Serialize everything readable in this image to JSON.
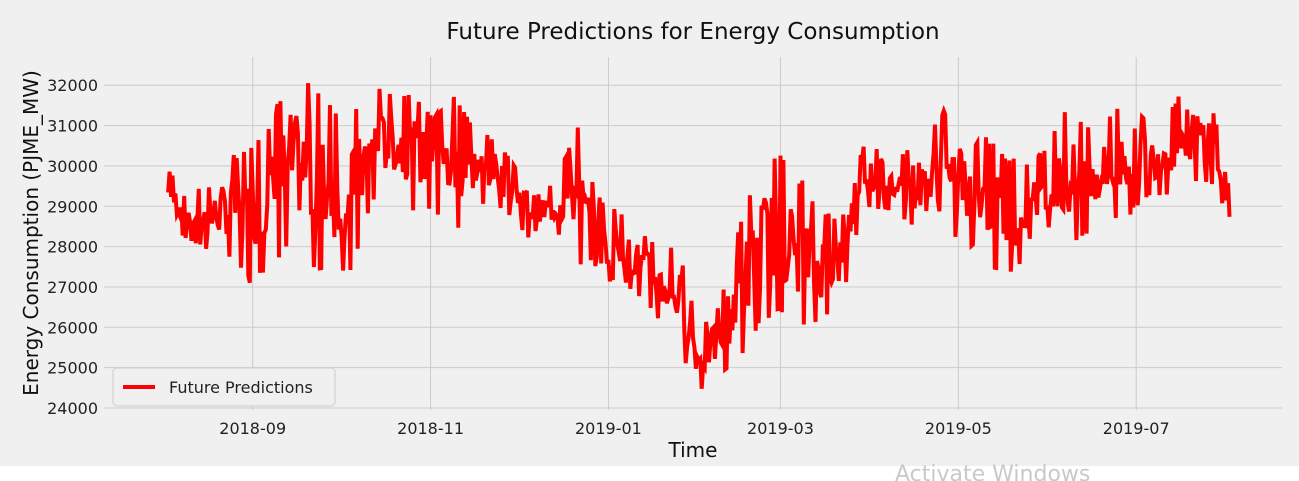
{
  "chart_data": {
    "type": "line",
    "title": "Future Predictions for Energy Consumption",
    "xlabel": "Time",
    "ylabel": "Energy Consumption (PJME_MW)",
    "x_ticks": [
      "2018-09",
      "2018-11",
      "2019-01",
      "2019-03",
      "2019-05",
      "2019-07"
    ],
    "y_ticks": [
      "24000",
      "25000",
      "26000",
      "27000",
      "28000",
      "29000",
      "30000",
      "31000",
      "32000"
    ],
    "xlim": [
      "2018-07-12",
      "2019-08-20"
    ],
    "ylim": [
      23950,
      32700
    ],
    "grid": true,
    "legend": {
      "position": "lower-left",
      "entries": [
        "Future Predictions"
      ]
    },
    "colors": {
      "line": "#ff0000",
      "background": "#f0f0f0",
      "grid": "#cbcbcb"
    },
    "series": [
      {
        "name": "Future Predictions",
        "x": [
          "2018-08-03",
          "2018-08-10",
          "2018-08-17",
          "2018-08-24",
          "2018-08-31",
          "2018-09-07",
          "2018-09-14",
          "2018-09-21",
          "2018-09-28",
          "2018-10-05",
          "2018-10-12",
          "2018-10-19",
          "2018-10-26",
          "2018-11-02",
          "2018-11-09",
          "2018-11-16",
          "2018-11-23",
          "2018-11-30",
          "2018-12-07",
          "2018-12-14",
          "2018-12-21",
          "2018-12-28",
          "2019-01-04",
          "2019-01-11",
          "2019-01-18",
          "2019-01-25",
          "2019-02-01",
          "2019-02-08",
          "2019-02-15",
          "2019-02-22",
          "2019-03-01",
          "2019-03-08",
          "2019-03-15",
          "2019-03-22",
          "2019-03-29",
          "2019-04-05",
          "2019-04-12",
          "2019-04-19",
          "2019-04-26",
          "2019-05-03",
          "2019-05-10",
          "2019-05-17",
          "2019-05-24",
          "2019-05-31",
          "2019-06-07",
          "2019-06-14",
          "2019-06-21",
          "2019-06-28",
          "2019-07-05",
          "2019-07-12",
          "2019-07-19",
          "2019-07-26",
          "2019-08-02"
        ],
        "min": [
          28700,
          28100,
          27900,
          27700,
          27100,
          27500,
          27900,
          27400,
          27200,
          27300,
          29100,
          29300,
          28900,
          28900,
          28200,
          28900,
          29100,
          28600,
          28000,
          28400,
          27600,
          26800,
          27200,
          26800,
          26200,
          25500,
          24400,
          24800,
          25200,
          26000,
          26300,
          25900,
          26100,
          26600,
          28900,
          28900,
          28700,
          28300,
          28100,
          28200,
          27600,
          27300,
          27500,
          27900,
          27700,
          28300,
          28500,
          28700,
          29200,
          29300,
          29500,
          29600,
          28700
        ],
        "max": [
          29900,
          29500,
          29500,
          30300,
          30400,
          31100,
          32350,
          32100,
          31500,
          31300,
          32000,
          31800,
          31800,
          31200,
          31800,
          31000,
          30700,
          30000,
          29700,
          29500,
          31100,
          29300,
          28900,
          28500,
          28000,
          28100,
          25900,
          26600,
          28600,
          30300,
          30300,
          29700,
          28900,
          28700,
          31300,
          30100,
          30300,
          30800,
          31400,
          30200,
          30800,
          30300,
          30100,
          30400,
          31500,
          31000,
          31200,
          31800,
          31100,
          31400,
          32050,
          31800,
          29700
        ]
      }
    ]
  },
  "watermark": "Activate Windows"
}
